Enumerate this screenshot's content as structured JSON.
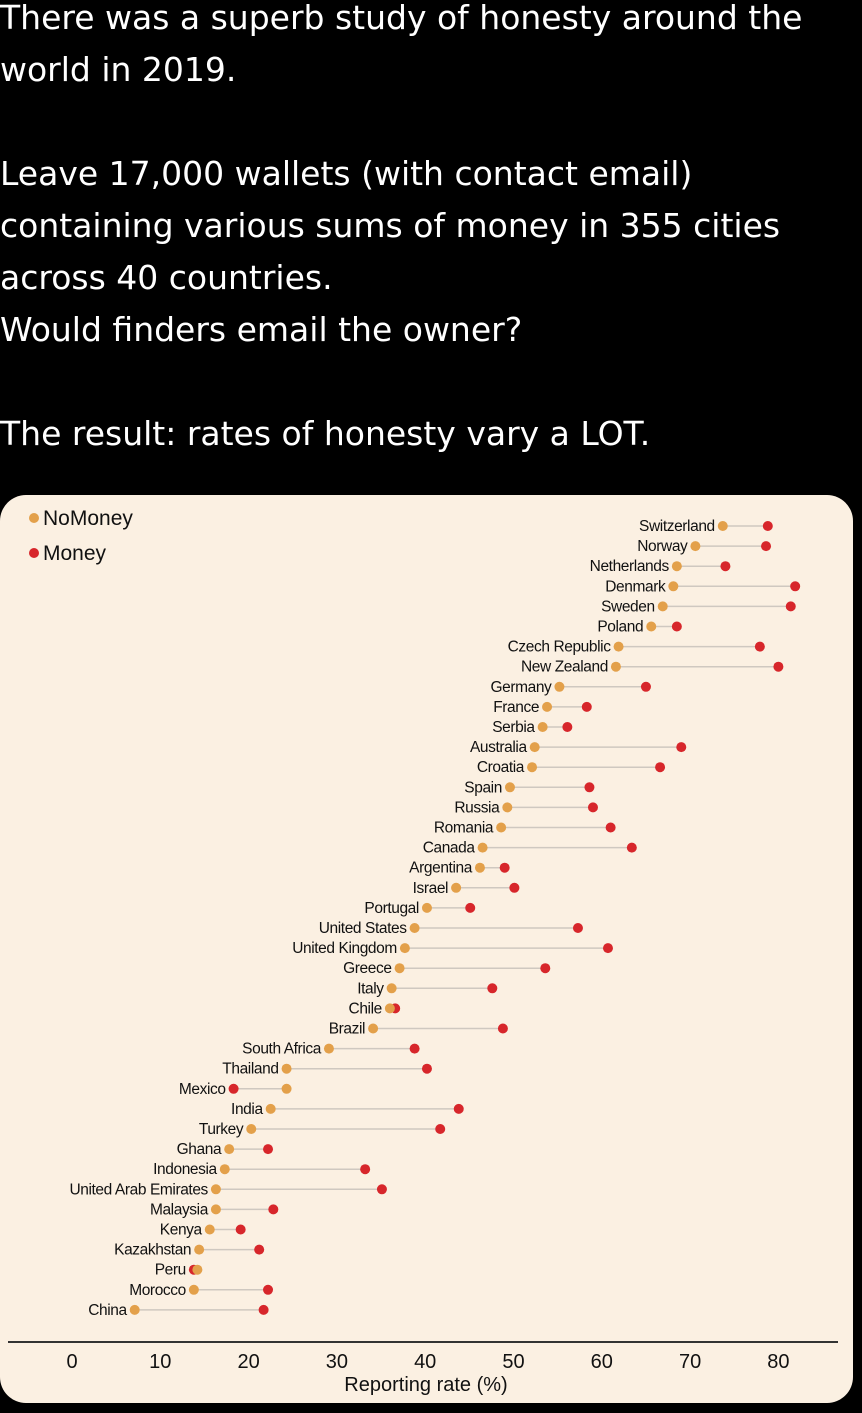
{
  "post": {
    "paragraphs": [
      [
        "There was a superb study of honesty around the world in 2019."
      ],
      [
        "Leave 17,000 wallets (with contact email) containing various sums of money in 355 cities across 40 countries.",
        "Would finders email the owner?"
      ],
      [
        "The result: rates of honesty vary a LOT."
      ]
    ]
  },
  "colors": {
    "nomoney": "#e3a04a",
    "money": "#d7262b",
    "card": "#fbf0e2",
    "connector": "#cfc8c0"
  },
  "chart_data": {
    "type": "dumbbell",
    "xlabel": "Reporting rate (%)",
    "xlim": [
      0,
      85
    ],
    "xticks": [
      0,
      10,
      20,
      30,
      40,
      50,
      60,
      70,
      80
    ],
    "legend": {
      "placement": "top-left",
      "entries": [
        "NoMoney",
        "Money"
      ]
    },
    "series_names": [
      "NoMoney",
      "Money"
    ],
    "countries": [
      {
        "name": "Switzerland",
        "nomoney": 73.7,
        "money": 78.8
      },
      {
        "name": "Norway",
        "nomoney": 70.6,
        "money": 78.6
      },
      {
        "name": "Netherlands",
        "nomoney": 68.5,
        "money": 74.0
      },
      {
        "name": "Denmark",
        "nomoney": 68.1,
        "money": 81.9
      },
      {
        "name": "Sweden",
        "nomoney": 66.9,
        "money": 81.4
      },
      {
        "name": "Poland",
        "nomoney": 65.6,
        "money": 68.5
      },
      {
        "name": "Czech Republic",
        "nomoney": 61.9,
        "money": 77.9
      },
      {
        "name": "New Zealand",
        "nomoney": 61.6,
        "money": 80.0
      },
      {
        "name": "Germany",
        "nomoney": 55.2,
        "money": 65.0
      },
      {
        "name": "France",
        "nomoney": 53.8,
        "money": 58.3
      },
      {
        "name": "Serbia",
        "nomoney": 53.3,
        "money": 56.1
      },
      {
        "name": "Australia",
        "nomoney": 52.4,
        "money": 69.0
      },
      {
        "name": "Croatia",
        "nomoney": 52.1,
        "money": 66.6
      },
      {
        "name": "Spain",
        "nomoney": 49.6,
        "money": 58.6
      },
      {
        "name": "Russia",
        "nomoney": 49.3,
        "money": 59.0
      },
      {
        "name": "Romania",
        "nomoney": 48.6,
        "money": 61.0
      },
      {
        "name": "Canada",
        "nomoney": 46.5,
        "money": 63.4
      },
      {
        "name": "Argentina",
        "nomoney": 46.2,
        "money": 49.0
      },
      {
        "name": "Israel",
        "nomoney": 43.5,
        "money": 50.1
      },
      {
        "name": "Portugal",
        "nomoney": 40.2,
        "money": 45.1
      },
      {
        "name": "United States",
        "nomoney": 38.8,
        "money": 57.3
      },
      {
        "name": "United Kingdom",
        "nomoney": 37.7,
        "money": 60.7
      },
      {
        "name": "Greece",
        "nomoney": 37.1,
        "money": 53.6
      },
      {
        "name": "Italy",
        "nomoney": 36.2,
        "money": 47.6
      },
      {
        "name": "Chile",
        "nomoney": 36.0,
        "money": 36.6
      },
      {
        "name": "Brazil",
        "nomoney": 34.1,
        "money": 48.8
      },
      {
        "name": "South Africa",
        "nomoney": 29.1,
        "money": 38.8
      },
      {
        "name": "Thailand",
        "nomoney": 24.3,
        "money": 40.2
      },
      {
        "name": "Mexico",
        "nomoney": 24.3,
        "money": 18.3
      },
      {
        "name": "India",
        "nomoney": 22.5,
        "money": 43.8
      },
      {
        "name": "Turkey",
        "nomoney": 20.3,
        "money": 41.7
      },
      {
        "name": "Ghana",
        "nomoney": 17.8,
        "money": 22.2
      },
      {
        "name": "Indonesia",
        "nomoney": 17.3,
        "money": 33.2
      },
      {
        "name": "United Arab Emirates",
        "nomoney": 16.3,
        "money": 35.1
      },
      {
        "name": "Malaysia",
        "nomoney": 16.3,
        "money": 22.8
      },
      {
        "name": "Kenya",
        "nomoney": 15.6,
        "money": 19.1
      },
      {
        "name": "Kazakhstan",
        "nomoney": 14.4,
        "money": 21.2
      },
      {
        "name": "Peru",
        "nomoney": 14.2,
        "money": 13.8
      },
      {
        "name": "Morocco",
        "nomoney": 13.8,
        "money": 22.2
      },
      {
        "name": "China",
        "nomoney": 7.1,
        "money": 21.7
      }
    ]
  }
}
